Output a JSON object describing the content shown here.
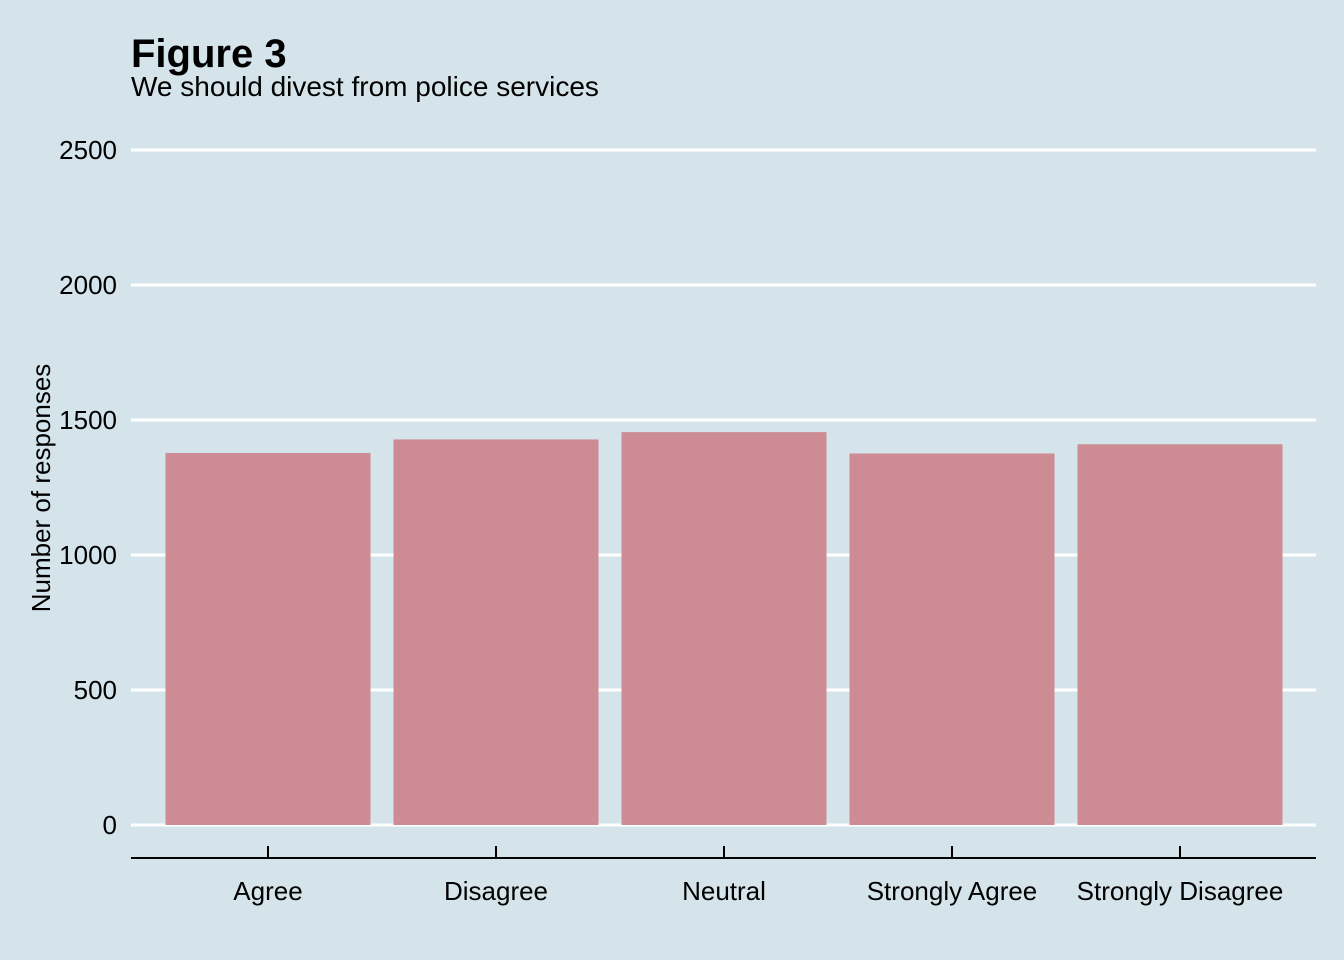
{
  "chart_data": {
    "type": "bar",
    "title": "Figure 3",
    "subtitle": "We should divest from police services",
    "xlabel": "",
    "ylabel": "Number of responses",
    "categories": [
      "Agree",
      "Disagree",
      "Neutral",
      "Strongly Agree",
      "Strongly Disagree"
    ],
    "values": [
      1378,
      1428,
      1455,
      1376,
      1410
    ],
    "ylim": [
      0,
      2500
    ],
    "yticks": [
      0,
      500,
      1000,
      1500,
      2000,
      2500
    ],
    "grid": "horizontal",
    "legend": "none",
    "colors": {
      "background": "#d5e4eb",
      "bar": "#cd8b94",
      "grid": "#ffffff",
      "axis": "#000000"
    }
  }
}
